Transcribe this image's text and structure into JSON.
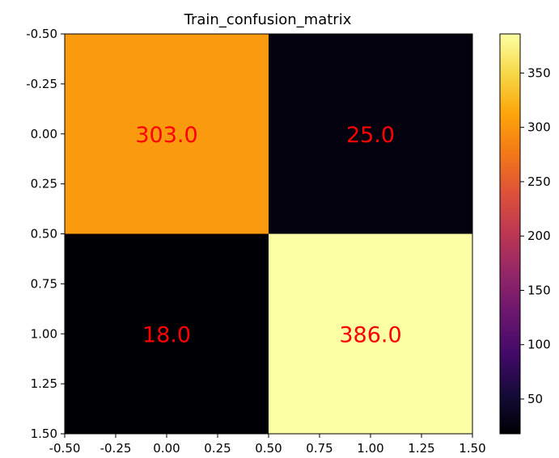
{
  "chart_data": {
    "type": "heatmap",
    "title": "Train_confusion_matrix",
    "xlabel": "",
    "ylabel": "",
    "xlim": [
      -0.5,
      1.5
    ],
    "ylim": [
      1.5,
      -0.5
    ],
    "x_ticks": [
      "-0.50",
      "-0.25",
      "0.00",
      "0.25",
      "0.50",
      "0.75",
      "1.00",
      "1.25",
      "1.50"
    ],
    "y_ticks": [
      "-0.50",
      "-0.25",
      "0.00",
      "0.25",
      "0.50",
      "0.75",
      "1.00",
      "1.25",
      "1.50"
    ],
    "matrix": [
      [
        303,
        25
      ],
      [
        18,
        386
      ]
    ],
    "cell_labels": [
      [
        "303.0",
        "25.0"
      ],
      [
        "18.0",
        "386.0"
      ]
    ],
    "cell_label_color": "#ff0000",
    "colormap": "inferno",
    "colorbar": {
      "range": [
        18,
        386
      ],
      "ticks": [
        "50",
        "100",
        "150",
        "200",
        "250",
        "300",
        "350"
      ]
    },
    "grid": false
  }
}
